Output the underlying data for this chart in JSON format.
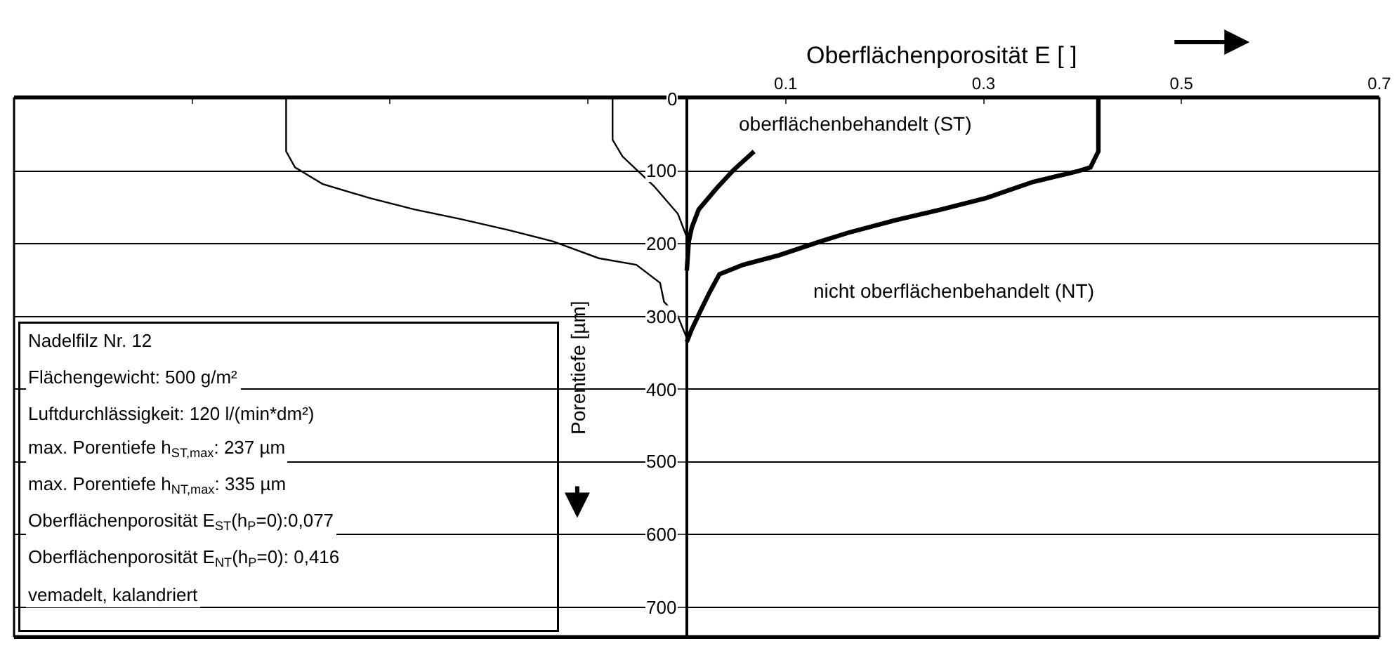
{
  "chart_data": {
    "type": "line",
    "xlabel": "Oberflächenporosität E [ ]",
    "ylabel": "Porentiefe [µm]",
    "xlim": [
      -0.68,
      0.7
    ],
    "xticks": [
      {
        "value": -0.5,
        "label": null
      },
      {
        "value": -0.3,
        "label": null
      },
      {
        "value": -0.1,
        "label": null
      },
      0.1,
      0.3,
      0.5,
      0.7
    ],
    "ylim": [
      740,
      0
    ],
    "yticks": [
      0,
      100,
      200,
      300,
      400,
      500,
      600,
      700
    ],
    "grid": "y",
    "marker": "none",
    "line_style": "solid",
    "series": [
      {
        "color": "#000000",
        "x": [
          0.068,
          0.047,
          0.03,
          0.012,
          0.005,
          0.002,
          0
        ],
        "values": [
          73,
          99,
          124,
          153,
          178,
          197,
          237
        ]
      },
      {
        "color": "#000000",
        "x": [
          0.416,
          0.416,
          0.408,
          0.396,
          0.35,
          0.303,
          0.257,
          0.21,
          0.163,
          0.135,
          0.093,
          0.057,
          0.033,
          0.023,
          0.014,
          0.005,
          0
        ],
        "values": [
          0,
          73,
          95,
          100,
          115,
          137,
          153,
          168,
          185,
          197,
          216,
          229,
          242,
          267,
          292,
          318,
          335
        ]
      },
      {
        "color": "#000000",
        "x": [
          -0.075,
          -0.075,
          -0.065,
          -0.033,
          -0.009,
          0
        ],
        "values": [
          0,
          57,
          80,
          121,
          159,
          191
        ]
      },
      {
        "color": "#000000",
        "x": [
          -0.405,
          -0.405,
          -0.396,
          -0.368,
          -0.321,
          -0.275,
          -0.229,
          -0.181,
          -0.135,
          -0.089,
          -0.051,
          -0.027,
          -0.023,
          -0.009,
          0
        ],
        "values": [
          0,
          73,
          95,
          118,
          137,
          153,
          166,
          181,
          197,
          220,
          229,
          254,
          280,
          300,
          330
        ]
      }
    ],
    "annotations": [
      "oberflächenbehandelt (ST)",
      "nicht oberflächenbehandelt (NT)",
      "Nadelfilz Nr. 12",
      "Flächengewicht: 500 g/m²",
      "Luftdurchlässigkeit: 120 l/(min*dm²)",
      "max. Porentiefe h$_{ST,max}$: 237 µm",
      "max. Porentiefe h$_{NT,max}$: 335 µm",
      "Oberflächenporosität E$_{ST}$(h$_{P}$=0):0,077",
      "Oberflächenporosität E$_{NT}$(h$_{P}$=0): 0,416",
      "vemadelt, kalandriert"
    ]
  }
}
